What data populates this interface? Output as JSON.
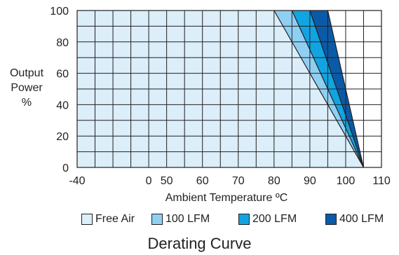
{
  "chart_data": {
    "type": "area",
    "title": "Derating Curve",
    "xlabel": "Ambient Temperature ºC",
    "ylabel_lines": [
      "Output",
      "Power",
      "%"
    ],
    "x_tick_labels": [
      "-40",
      "0",
      "50",
      "60",
      "70",
      "80",
      "90",
      "100",
      "110"
    ],
    "x_tick_positions": [
      -40,
      0,
      50,
      60,
      70,
      80,
      90,
      100,
      110
    ],
    "x_axis_breaks": [
      -40,
      -30,
      -20,
      -10,
      0,
      50,
      55,
      60,
      65,
      70,
      75,
      80,
      85,
      90,
      95,
      100,
      105,
      110
    ],
    "y_tick_labels": [
      "0",
      "20",
      "40",
      "60",
      "80",
      "100"
    ],
    "ylim": [
      0,
      100
    ],
    "grid": true,
    "legend_position": "bottom",
    "series": [
      {
        "name": "Free Air",
        "color": "#dbeefa",
        "x": [
          -40,
          80,
          105
        ],
        "y": [
          100,
          100,
          0
        ]
      },
      {
        "name": "100 LFM",
        "color": "#8fd0f2",
        "x": [
          -40,
          85,
          105
        ],
        "y": [
          100,
          100,
          0
        ]
      },
      {
        "name": "200 LFM",
        "color": "#12a4e0",
        "x": [
          -40,
          90,
          105
        ],
        "y": [
          100,
          100,
          0
        ]
      },
      {
        "name": "400 LFM",
        "color": "#0b5aa8",
        "x": [
          -40,
          95,
          105
        ],
        "y": [
          100,
          100,
          0
        ]
      }
    ]
  }
}
